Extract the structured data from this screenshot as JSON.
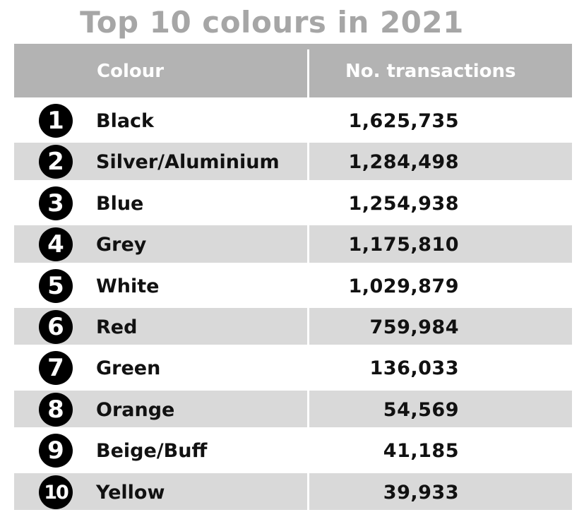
{
  "title": "Top 10 colours in 2021",
  "chart_data": {
    "type": "table",
    "title": "Top 10 colours in 2021",
    "columns": [
      "Colour",
      "No. transactions"
    ],
    "rows": [
      {
        "rank": "1",
        "colour": "Black",
        "transactions": "1,625,735"
      },
      {
        "rank": "2",
        "colour": "Silver/Aluminium",
        "transactions": "1,284,498"
      },
      {
        "rank": "3",
        "colour": "Blue",
        "transactions": "1,254,938"
      },
      {
        "rank": "4",
        "colour": "Grey",
        "transactions": "1,175,810"
      },
      {
        "rank": "5",
        "colour": "White",
        "transactions": "1,029,879"
      },
      {
        "rank": "6",
        "colour": "Red",
        "transactions": "759,984"
      },
      {
        "rank": "7",
        "colour": "Green",
        "transactions": "136,033"
      },
      {
        "rank": "8",
        "colour": "Orange",
        "transactions": "54,569"
      },
      {
        "rank": "9",
        "colour": "Beige/Buff",
        "transactions": "41,185"
      },
      {
        "rank": "10",
        "colour": "Yellow",
        "transactions": "39,933"
      }
    ]
  },
  "colors": {
    "title": "#a6a6a6",
    "header_bg": "#b3b3b3",
    "stripe": "#d9d9d9",
    "badge": "#000000"
  }
}
